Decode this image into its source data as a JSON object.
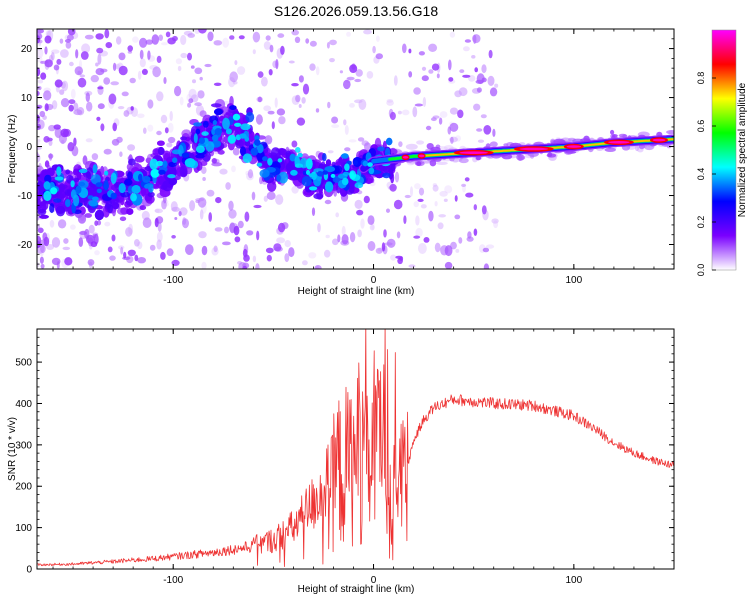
{
  "title": "S126.2026.059.13.56.G18",
  "colorbar": {
    "label": "Normalized spectral amplitude",
    "ticks": [
      "0.0",
      "0.2",
      "0.4",
      "0.6",
      "0.8"
    ],
    "tick_values": [
      0.0,
      0.2,
      0.4,
      0.6,
      0.8
    ],
    "range": [
      0,
      1
    ],
    "stops": [
      "#ffffff",
      "#7a00ff",
      "#0000ff",
      "#00ffff",
      "#00ff00",
      "#ffff00",
      "#ff0000",
      "#ff00ff"
    ]
  },
  "chart_data": [
    {
      "type": "heatmap",
      "name": "spectrogram",
      "xlabel": "Height of straight line (km)",
      "ylabel": "Frequency (Hz)",
      "xlim": [
        -168,
        150
      ],
      "ylim": [
        -25,
        24
      ],
      "xticks": [
        -100,
        0,
        100
      ],
      "xtick_labels": [
        "-100",
        "0",
        "100"
      ],
      "yticks": [
        -20,
        -10,
        0,
        10,
        20
      ],
      "ytick_labels": [
        "-20",
        "-10",
        "0",
        "10",
        "20"
      ],
      "ridge": {
        "x": [
          -168,
          -150,
          -130,
          -110,
          -95,
          -85,
          -75,
          -70,
          -60,
          -50,
          -40,
          -30,
          -20,
          -10,
          0,
          10,
          20,
          40,
          60,
          80,
          100,
          120,
          150
        ],
        "y": [
          -8,
          -9,
          -9,
          -6,
          -2,
          1,
          3,
          5,
          0,
          -4,
          -4,
          -6,
          -6,
          -6,
          -3,
          -2.5,
          -2,
          -1.5,
          -1,
          -0.5,
          0,
          0.8,
          1.5
        ]
      }
    },
    {
      "type": "line",
      "name": "snr",
      "xlabel": "Height of straight line (km)",
      "ylabel": "SNR (10 * v/v)",
      "xlim": [
        -168,
        150
      ],
      "ylim": [
        0,
        580
      ],
      "xticks": [
        -100,
        0,
        100
      ],
      "xtick_labels": [
        "-100",
        "0",
        "100"
      ],
      "yticks": [
        0,
        100,
        200,
        300,
        400,
        500
      ],
      "ytick_labels": [
        "0",
        "100",
        "200",
        "300",
        "400",
        "500"
      ],
      "color": "#ee3333",
      "envelope": {
        "x": [
          -168,
          -150,
          -130,
          -110,
          -100,
          -80,
          -60,
          -50,
          -40,
          -30,
          -20,
          -10,
          0,
          10,
          17,
          20,
          25,
          30,
          40,
          60,
          80,
          100,
          110,
          120,
          130,
          140,
          150
        ],
        "y": [
          10,
          12,
          18,
          25,
          30,
          40,
          55,
          70,
          100,
          160,
          230,
          260,
          290,
          300,
          250,
          310,
          360,
          390,
          410,
          400,
          395,
          370,
          340,
          305,
          280,
          262,
          250
        ]
      }
    }
  ]
}
